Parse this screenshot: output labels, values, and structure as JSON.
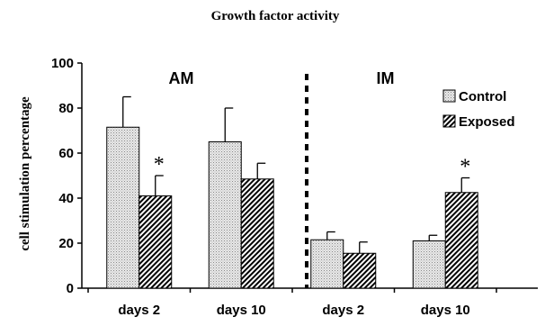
{
  "chart_data": {
    "type": "bar",
    "title": "Growth factor activity",
    "ylabel": "cell stimulation percentage",
    "xlabel": "",
    "ylim": [
      0,
      100
    ],
    "yticks": [
      0,
      20,
      40,
      60,
      80,
      100
    ],
    "categories": [
      "days 2",
      "days 10",
      "days 2",
      "days 10"
    ],
    "groups": [
      {
        "label": "AM",
        "categories": [
          0,
          1
        ]
      },
      {
        "label": "IM",
        "categories": [
          2,
          3
        ]
      }
    ],
    "series": [
      {
        "name": "Control",
        "values": [
          71.5,
          65,
          21.5,
          21
        ],
        "errors": [
          13.5,
          15,
          3.5,
          2.5
        ],
        "fill": "dotted-light"
      },
      {
        "name": "Exposed",
        "values": [
          41,
          48.5,
          15.5,
          42.5
        ],
        "errors": [
          9,
          7,
          5,
          6.5
        ],
        "fill": "diagonal-hatch"
      }
    ],
    "annotations": [
      {
        "text": "*",
        "series": 1,
        "category": 0
      },
      {
        "text": "*",
        "series": 1,
        "category": 3
      }
    ],
    "legend": {
      "position": "top-right",
      "entries": [
        "Control",
        "Exposed"
      ]
    },
    "grid": false
  }
}
